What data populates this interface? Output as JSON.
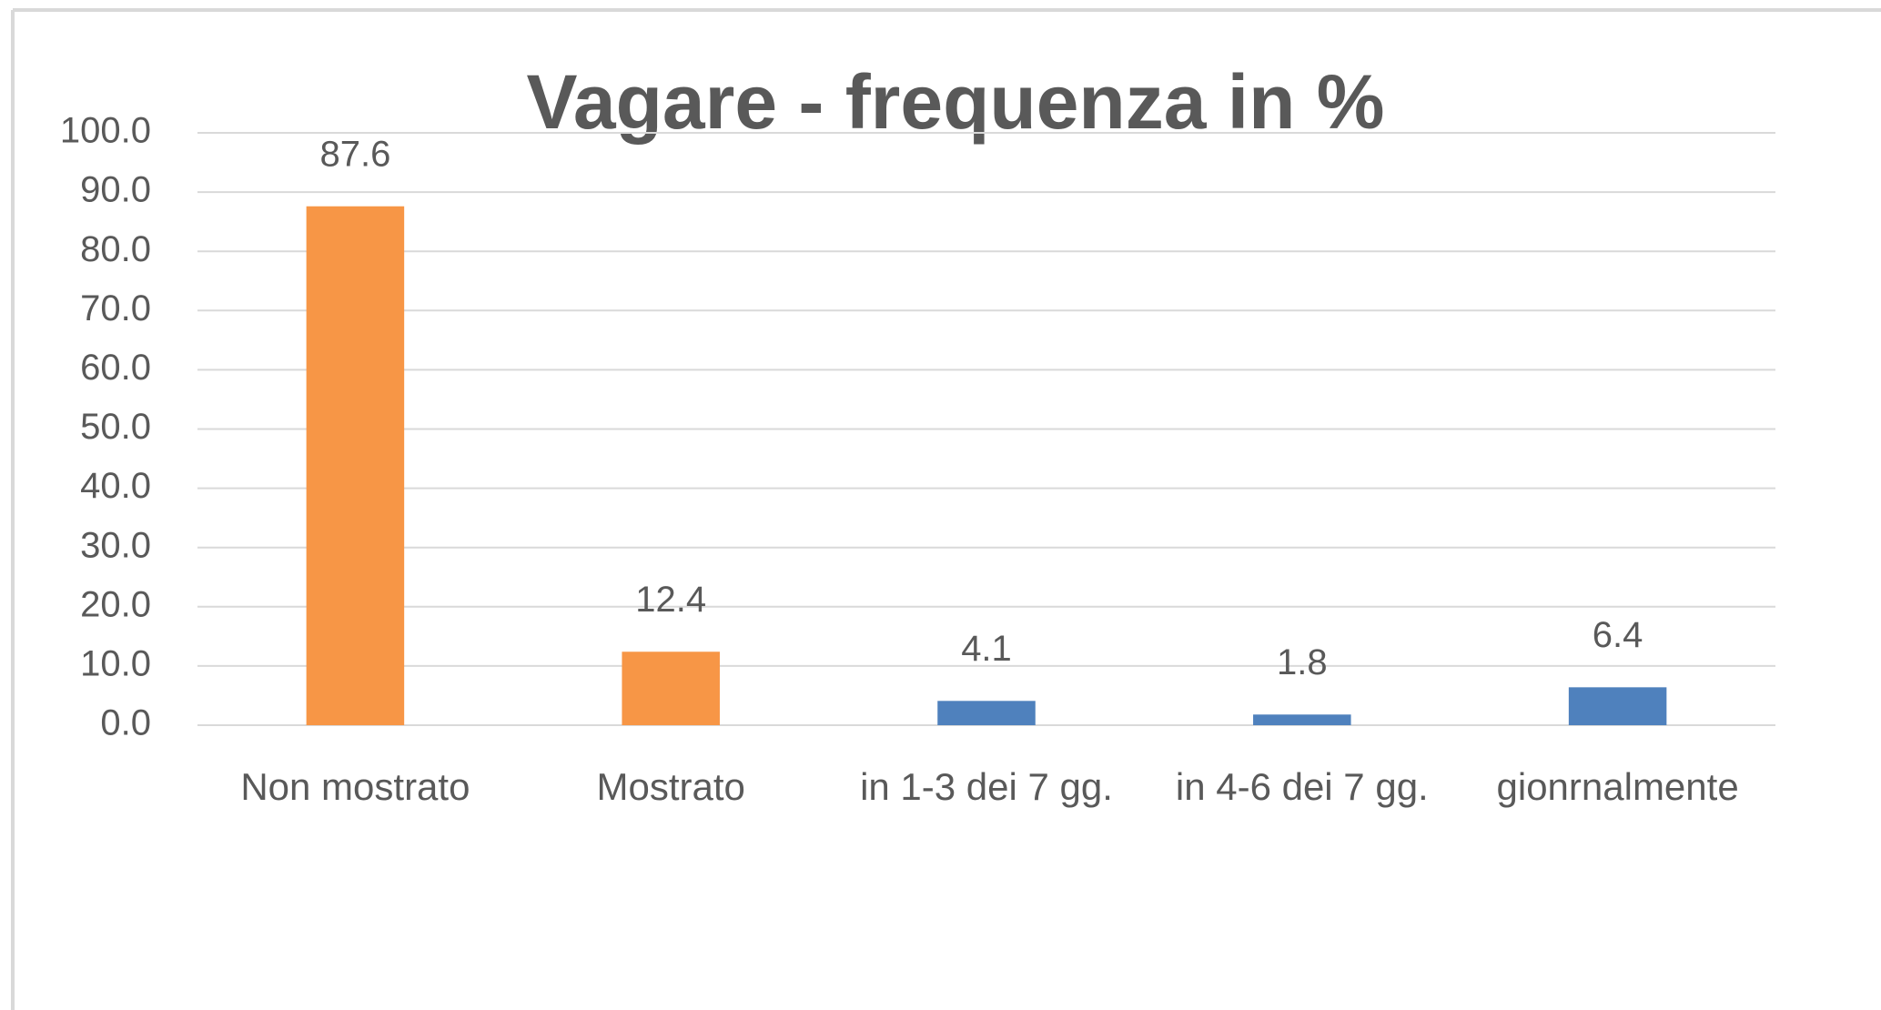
{
  "chart_data": {
    "type": "bar",
    "title": "Vagare - frequenza in %",
    "categories": [
      "Non mostrato",
      "Mostrato",
      "in 1-3 dei 7 gg.",
      "in 4-6 dei 7 gg.",
      "gionrnalmente"
    ],
    "values": [
      87.6,
      12.4,
      4.1,
      1.8,
      6.4
    ],
    "colors": [
      "#f79646",
      "#f79646",
      "#4f81bd",
      "#4f81bd",
      "#4f81bd"
    ],
    "ylim": [
      0,
      100
    ],
    "yticks": [
      {
        "value": 0,
        "label": "0.0"
      },
      {
        "value": 10,
        "label": "10.0"
      },
      {
        "value": 20,
        "label": "20.0"
      },
      {
        "value": 30,
        "label": "30.0"
      },
      {
        "value": 40,
        "label": "40.0"
      },
      {
        "value": 50,
        "label": "50.0"
      },
      {
        "value": 60,
        "label": "60.0"
      },
      {
        "value": 70,
        "label": "70.0"
      },
      {
        "value": 80,
        "label": "80.0"
      },
      {
        "value": 90,
        "label": "90.0"
      },
      {
        "value": 100,
        "label": "100.0"
      }
    ],
    "grid": true
  }
}
